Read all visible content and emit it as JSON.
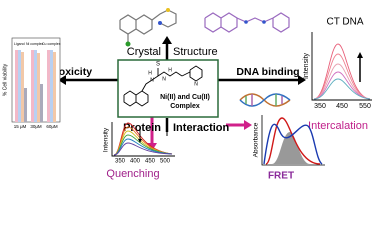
{
  "header": {
    "crystal": "Crystal",
    "structure": "Structure"
  },
  "center": {
    "line1": "Ni(II) and Cu(II)",
    "line2": "Complex",
    "atoms": [
      "S",
      "H",
      "N",
      "N",
      "H",
      "N"
    ]
  },
  "labels": {
    "cytotoxicity": "Cytotoxicity",
    "dna_binding": "DNA binding",
    "protein": "Protein",
    "interaction": "Interaction"
  },
  "viability": {
    "y_label": "% Cell viability",
    "legend": [
      "Ligand",
      "Ni complex",
      "Cu complex"
    ],
    "groups": [
      "15 μM",
      "30μM",
      "60μM"
    ]
  },
  "ct_dna": {
    "title": "CT DNA",
    "y_label": "Intensity",
    "x_ticks": [
      "350",
      "450",
      "550"
    ],
    "caption": "Intercalation"
  },
  "quenching": {
    "y_label": "Intensity",
    "x_ticks": [
      "350",
      "400",
      "450",
      "500"
    ],
    "caption": "Quenching"
  },
  "fret": {
    "y_label": "Absorbance",
    "caption": "FRET"
  }
}
